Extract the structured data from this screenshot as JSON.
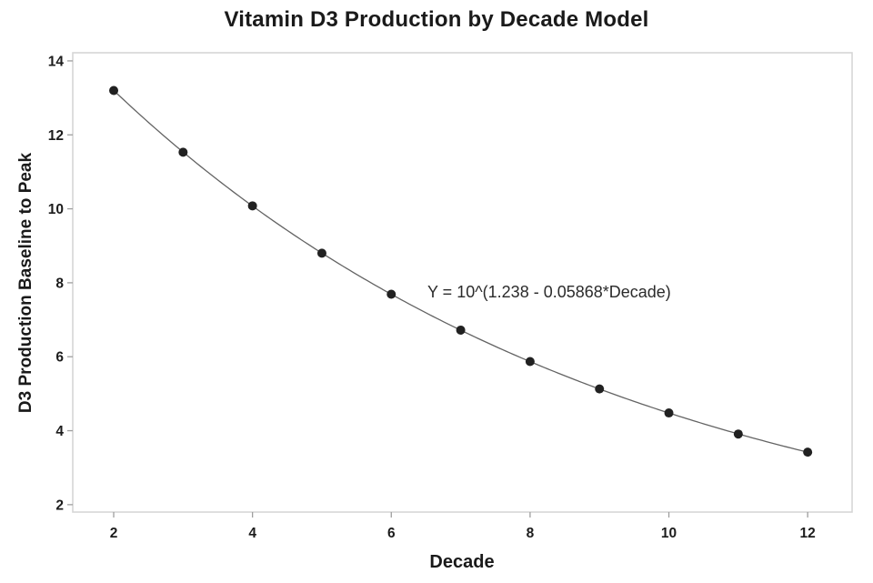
{
  "chart_data": {
    "type": "line",
    "title": "Vitamin D3 Production by Decade Model",
    "xlabel": "Decade",
    "ylabel": "D3 Production Baseline to Peak",
    "annotation": "Y = 10^(1.238 - 0.05868*Decade)",
    "x": [
      2,
      3,
      4,
      5,
      6,
      7,
      8,
      9,
      10,
      11,
      12
    ],
    "values": [
      13.2,
      11.53,
      10.08,
      8.8,
      7.69,
      6.72,
      5.87,
      5.13,
      4.48,
      3.91,
      3.42
    ],
    "model": {
      "form": "Y = 10^(a + b*Decade)",
      "a": 1.238,
      "b": -0.05868
    },
    "xticks": [
      2,
      4,
      6,
      8,
      10,
      12
    ],
    "yticks": [
      2,
      4,
      6,
      8,
      10,
      12,
      14
    ],
    "xlim": [
      1.41,
      12.64
    ],
    "ylim": [
      1.8,
      14.22
    ],
    "grid": false,
    "legend": null,
    "colors": {
      "background": "#ffffff",
      "frame": "#d4d4d4",
      "tick": "#9e9e9e",
      "line": "#636363",
      "marker": "#212121",
      "text": "#1a1a1a"
    }
  }
}
